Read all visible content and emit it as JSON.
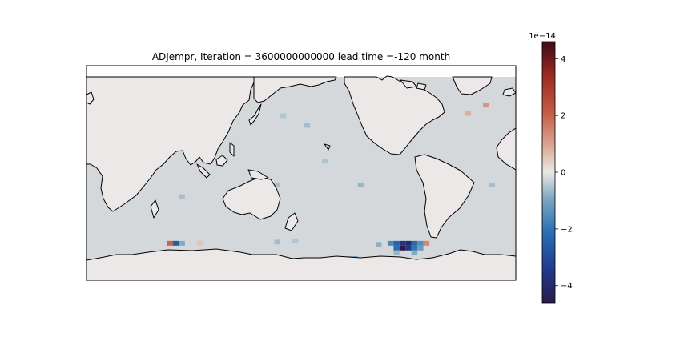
{
  "chart_data": {
    "type": "heatmap",
    "title": "ADJempr, Iteration = 3600000000000 lead time =-120 month",
    "projection": "PlateCarree, central longitude 180",
    "colormap": "balance (diverging: dark blue - grey - dark red)",
    "colorbar": {
      "ticks": [
        -4,
        -2,
        0,
        2,
        4
      ],
      "tick_labels": [
        "−4",
        "−2",
        "0",
        "2",
        "4"
      ],
      "exponent_label": "1e−14",
      "vmin": -4.6,
      "vmax": 4.6
    },
    "field_description": "near-zero sensitivity almost everywhere; ocean slightly negative (about -0.3 to -0.8); strongest negative values near the Southern Ocean edge around 70W-60W, 60S (down to about -4.6e-14); small positive spots near 70E-75E, 60S and in the North Atlantic (about +1 to +2)",
    "cells": [
      {
        "lon": 165,
        "lat": 48,
        "v": -0.5
      },
      {
        "lon": 185,
        "lat": 40,
        "v": -0.6
      },
      {
        "lon": 200,
        "lat": 10,
        "v": -0.5
      },
      {
        "lon": 160,
        "lat": -10,
        "v": -0.6
      },
      {
        "lon": 230,
        "lat": -10,
        "v": -0.7
      },
      {
        "lon": 80,
        "lat": -20,
        "v": -0.6
      },
      {
        "lon": -20,
        "lat": -10,
        "v": -0.6
      },
      {
        "lon": -40,
        "lat": 50,
        "v": 0.8
      },
      {
        "lon": -25,
        "lat": 57,
        "v": 1.2
      },
      {
        "lon": 0,
        "lat": 62,
        "v": 0.9
      },
      {
        "lon": 70,
        "lat": -59,
        "v": 2.0
      },
      {
        "lon": 75,
        "lat": -59,
        "v": -2.6
      },
      {
        "lon": 80,
        "lat": -59,
        "v": -0.9
      },
      {
        "lon": 95,
        "lat": -59,
        "v": 0.5
      },
      {
        "lon": 160,
        "lat": -58,
        "v": -0.6
      },
      {
        "lon": 175,
        "lat": -57,
        "v": -0.5
      },
      {
        "lon": 220,
        "lat": -72,
        "v": -1.0
      },
      {
        "lon": 225,
        "lat": -72,
        "v": -1.3
      },
      {
        "lon": 245,
        "lat": -60,
        "v": -0.8
      },
      {
        "lon": 255,
        "lat": -59,
        "v": -1.6
      },
      {
        "lon": 260,
        "lat": -59,
        "v": -2.4
      },
      {
        "lon": 265,
        "lat": -59,
        "v": -3.6
      },
      {
        "lon": 270,
        "lat": -59,
        "v": -4.0
      },
      {
        "lon": 275,
        "lat": -59,
        "v": -2.3
      },
      {
        "lon": 280,
        "lat": -59,
        "v": -1.5
      },
      {
        "lon": 285,
        "lat": -59,
        "v": 1.4
      },
      {
        "lon": 260,
        "lat": -63,
        "v": -2.2
      },
      {
        "lon": 265,
        "lat": -63,
        "v": -4.6
      },
      {
        "lon": 270,
        "lat": -63,
        "v": -3.5
      },
      {
        "lon": 275,
        "lat": -63,
        "v": -2.0
      },
      {
        "lon": 280,
        "lat": -63,
        "v": -1.2
      },
      {
        "lon": 275,
        "lat": -67,
        "v": -0.9
      },
      {
        "lon": 260,
        "lat": -67,
        "v": -0.7
      }
    ]
  }
}
